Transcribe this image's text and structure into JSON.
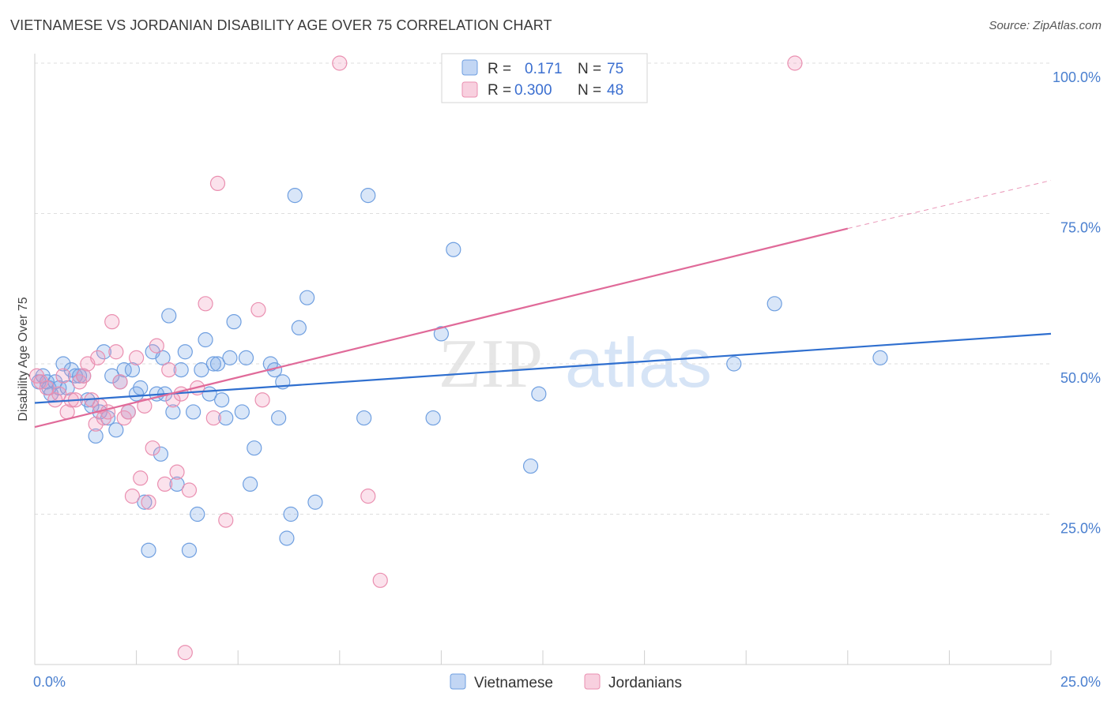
{
  "title": "VIETNAMESE VS JORDANIAN DISABILITY AGE OVER 75 CORRELATION CHART",
  "source": "Source: ZipAtlas.com",
  "watermark": {
    "zip": "ZIP",
    "atlas": "atlas"
  },
  "colors": {
    "blue": "#6f9fe0",
    "blue_fill": "rgba(120,165,230,0.28)",
    "blue_line": "#2f6fcf",
    "pink": "#ea8fb0",
    "pink_fill": "rgba(240,150,185,0.28)",
    "pink_line": "#e06a99",
    "tick_text": "#4a7fcf",
    "grid": "#dedede"
  },
  "legend": {
    "rows": [
      {
        "r_label": "R =",
        "r_value": "0.171",
        "n_label": "N =",
        "n_value": "75"
      },
      {
        "r_label": "R =",
        "r_value": "0.300",
        "n_label": "N =",
        "n_value": "48"
      }
    ]
  },
  "bottom_legend": [
    "Vietnamese",
    "Jordanians"
  ],
  "chart_data": {
    "type": "scatter",
    "title": "VIETNAMESE VS JORDANIAN DISABILITY AGE OVER 75 CORRELATION CHART",
    "xlabel": "",
    "ylabel": "Disability Age Over 75",
    "xlim": [
      0,
      25
    ],
    "ylim": [
      0,
      100
    ],
    "x_tick_labels": [
      "0.0%",
      "25.0%"
    ],
    "y_ticks": [
      25,
      50,
      75,
      100
    ],
    "y_tick_labels": [
      "25.0%",
      "50.0%",
      "75.0%",
      "100.0%"
    ],
    "grid": true,
    "legend_position": "top-center",
    "series": [
      {
        "name": "Vietnamese",
        "r": 0.171,
        "n": 75,
        "trend": {
          "x": [
            0,
            25
          ],
          "y": [
            43.5,
            55
          ]
        },
        "points": [
          [
            0.1,
            47
          ],
          [
            0.2,
            48
          ],
          [
            0.3,
            47
          ],
          [
            0.35,
            46
          ],
          [
            0.4,
            45
          ],
          [
            0.5,
            47
          ],
          [
            0.6,
            46
          ],
          [
            0.7,
            50
          ],
          [
            0.8,
            46
          ],
          [
            0.9,
            49
          ],
          [
            1.0,
            48
          ],
          [
            1.1,
            48
          ],
          [
            1.2,
            48
          ],
          [
            1.3,
            44
          ],
          [
            1.4,
            43
          ],
          [
            1.5,
            38
          ],
          [
            1.6,
            42
          ],
          [
            1.7,
            52
          ],
          [
            1.8,
            41
          ],
          [
            1.9,
            48
          ],
          [
            2.0,
            39
          ],
          [
            2.1,
            47
          ],
          [
            2.2,
            49
          ],
          [
            2.3,
            42
          ],
          [
            2.4,
            49
          ],
          [
            2.5,
            45
          ],
          [
            2.6,
            46
          ],
          [
            2.7,
            27
          ],
          [
            2.8,
            19
          ],
          [
            2.9,
            52
          ],
          [
            3.0,
            45
          ],
          [
            3.1,
            35
          ],
          [
            3.2,
            45
          ],
          [
            3.3,
            58
          ],
          [
            3.4,
            42
          ],
          [
            3.5,
            30
          ],
          [
            3.6,
            49
          ],
          [
            3.7,
            52
          ],
          [
            3.8,
            19
          ],
          [
            3.9,
            42
          ],
          [
            4.0,
            25
          ],
          [
            4.1,
            49
          ],
          [
            4.2,
            54
          ],
          [
            4.3,
            45
          ],
          [
            4.4,
            50
          ],
          [
            4.5,
            50
          ],
          [
            4.6,
            44
          ],
          [
            4.7,
            41
          ],
          [
            4.8,
            51
          ],
          [
            4.9,
            57
          ],
          [
            5.1,
            42
          ],
          [
            5.2,
            51
          ],
          [
            5.3,
            30
          ],
          [
            5.4,
            36
          ],
          [
            5.8,
            50
          ],
          [
            5.9,
            49
          ],
          [
            6.0,
            41
          ],
          [
            6.1,
            47
          ],
          [
            6.2,
            21
          ],
          [
            6.3,
            25
          ],
          [
            6.4,
            78
          ],
          [
            6.5,
            56
          ],
          [
            6.7,
            61
          ],
          [
            6.9,
            27
          ],
          [
            8.1,
            41
          ],
          [
            8.2,
            78
          ],
          [
            9.8,
            41
          ],
          [
            10.0,
            55
          ],
          [
            10.3,
            69
          ],
          [
            12.2,
            33
          ],
          [
            12.4,
            45
          ],
          [
            17.2,
            50
          ],
          [
            18.2,
            60
          ],
          [
            20.8,
            51
          ],
          [
            3.15,
            51
          ]
        ]
      },
      {
        "name": "Jordanians",
        "r": 0.3,
        "n": 48,
        "trend": {
          "x": [
            0,
            20
          ],
          "y": [
            39.5,
            72.5
          ]
        },
        "trend_dashed": {
          "x": [
            20,
            25
          ],
          "y": [
            72.5,
            80.5
          ]
        },
        "points": [
          [
            0.05,
            48
          ],
          [
            0.15,
            47
          ],
          [
            0.3,
            46
          ],
          [
            0.5,
            44
          ],
          [
            0.6,
            45
          ],
          [
            0.7,
            48
          ],
          [
            0.8,
            42
          ],
          [
            0.9,
            44
          ],
          [
            1.0,
            44
          ],
          [
            1.1,
            47
          ],
          [
            1.2,
            48
          ],
          [
            1.3,
            50
          ],
          [
            1.4,
            44
          ],
          [
            1.5,
            40
          ],
          [
            1.6,
            43
          ],
          [
            1.7,
            41
          ],
          [
            1.8,
            42
          ],
          [
            1.9,
            57
          ],
          [
            2.0,
            52
          ],
          [
            2.1,
            47
          ],
          [
            2.2,
            41
          ],
          [
            2.3,
            42
          ],
          [
            2.4,
            28
          ],
          [
            2.5,
            51
          ],
          [
            2.6,
            31
          ],
          [
            2.7,
            43
          ],
          [
            2.8,
            27
          ],
          [
            2.9,
            36
          ],
          [
            3.0,
            53
          ],
          [
            3.2,
            30
          ],
          [
            3.3,
            49
          ],
          [
            3.4,
            44
          ],
          [
            3.5,
            32
          ],
          [
            3.6,
            45
          ],
          [
            3.7,
            2
          ],
          [
            3.8,
            29
          ],
          [
            4.0,
            46
          ],
          [
            4.2,
            60
          ],
          [
            4.4,
            41
          ],
          [
            4.5,
            80
          ],
          [
            4.7,
            24
          ],
          [
            5.5,
            59
          ],
          [
            5.6,
            44
          ],
          [
            7.5,
            100
          ],
          [
            8.2,
            28
          ],
          [
            8.5,
            14
          ],
          [
            18.7,
            100
          ],
          [
            1.55,
            51
          ]
        ]
      }
    ]
  }
}
